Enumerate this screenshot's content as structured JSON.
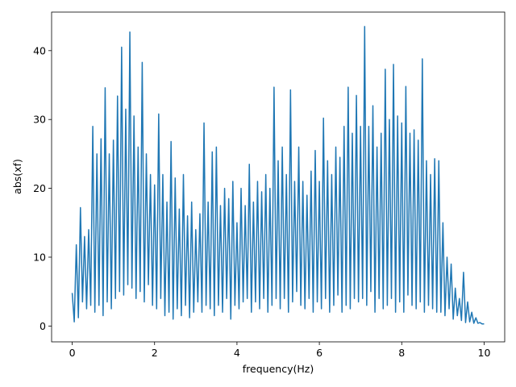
{
  "chart_data": {
    "type": "line",
    "xlabel": "frequency(Hz)",
    "ylabel": "abs(xf)",
    "xlim": [
      -0.5,
      10.5
    ],
    "ylim": [
      -2.3,
      45.6
    ],
    "xticks": [
      0,
      2,
      4,
      6,
      8,
      10
    ],
    "yticks": [
      0,
      10,
      20,
      30,
      40
    ],
    "x": [
      0,
      0.05,
      0.1,
      0.15,
      0.2,
      0.25,
      0.3,
      0.35,
      0.4,
      0.45,
      0.5,
      0.55,
      0.6,
      0.65,
      0.7,
      0.75,
      0.8,
      0.85,
      0.9,
      0.95,
      1,
      1.05,
      1.1,
      1.15,
      1.2,
      1.25,
      1.3,
      1.35,
      1.4,
      1.45,
      1.5,
      1.55,
      1.6,
      1.65,
      1.7,
      1.75,
      1.8,
      1.85,
      1.9,
      1.95,
      2,
      2.05,
      2.1,
      2.15,
      2.2,
      2.25,
      2.3,
      2.35,
      2.4,
      2.45,
      2.5,
      2.55,
      2.6,
      2.65,
      2.7,
      2.75,
      2.8,
      2.85,
      2.9,
      2.95,
      3,
      3.05,
      3.1,
      3.15,
      3.2,
      3.25,
      3.3,
      3.35,
      3.4,
      3.45,
      3.5,
      3.55,
      3.6,
      3.65,
      3.7,
      3.75,
      3.8,
      3.85,
      3.9,
      3.95,
      4,
      4.05,
      4.1,
      4.15,
      4.2,
      4.25,
      4.3,
      4.35,
      4.4,
      4.45,
      4.5,
      4.55,
      4.6,
      4.65,
      4.7,
      4.75,
      4.8,
      4.85,
      4.9,
      4.95,
      5,
      5.05,
      5.1,
      5.15,
      5.2,
      5.25,
      5.3,
      5.35,
      5.4,
      5.45,
      5.5,
      5.55,
      5.6,
      5.65,
      5.7,
      5.75,
      5.8,
      5.85,
      5.9,
      5.95,
      6,
      6.05,
      6.1,
      6.15,
      6.2,
      6.25,
      6.3,
      6.35,
      6.4,
      6.45,
      6.5,
      6.55,
      6.6,
      6.65,
      6.7,
      6.75,
      6.8,
      6.85,
      6.9,
      6.95,
      7,
      7.05,
      7.1,
      7.15,
      7.2,
      7.25,
      7.3,
      7.35,
      7.4,
      7.45,
      7.5,
      7.55,
      7.6,
      7.65,
      7.7,
      7.75,
      7.8,
      7.85,
      7.9,
      7.95,
      8,
      8.05,
      8.1,
      8.15,
      8.2,
      8.25,
      8.3,
      8.35,
      8.4,
      8.45,
      8.5,
      8.55,
      8.6,
      8.65,
      8.7,
      8.75,
      8.8,
      8.85,
      8.9,
      8.95,
      9,
      9.05,
      9.1,
      9.15,
      9.2,
      9.25,
      9.3,
      9.35,
      9.4,
      9.45,
      9.5,
      9.55,
      9.6,
      9.65,
      9.7,
      9.75,
      9.8,
      9.85,
      9.9,
      9.95,
      10
    ],
    "series": [
      {
        "color": "#1f77b4",
        "values": [
          4.8,
          0.6,
          11.8,
          1.2,
          17.2,
          3.5,
          13.0,
          2.5,
          14.0,
          3.0,
          29.0,
          2.0,
          25.0,
          3.0,
          27.2,
          1.5,
          34.6,
          3.5,
          25.0,
          2.5,
          27.0,
          4.0,
          33.4,
          5.0,
          40.5,
          4.5,
          31.5,
          6.0,
          42.7,
          5.5,
          30.5,
          4.0,
          26.0,
          5.0,
          38.3,
          3.5,
          25.0,
          6.0,
          22.0,
          3.0,
          20.5,
          2.5,
          30.8,
          4.0,
          22.0,
          1.5,
          18.0,
          2.0,
          26.8,
          1.0,
          21.5,
          2.5,
          17.0,
          1.5,
          22.0,
          3.0,
          16.0,
          1.2,
          18.0,
          2.0,
          14.0,
          3.5,
          16.3,
          2.0,
          29.5,
          3.0,
          18.0,
          2.5,
          25.3,
          1.5,
          26.0,
          3.0,
          17.5,
          2.0,
          20.0,
          4.0,
          18.5,
          1.0,
          21.0,
          3.0,
          15.0,
          2.5,
          20.0,
          3.5,
          17.5,
          4.0,
          23.5,
          2.0,
          18.0,
          3.5,
          21.0,
          2.5,
          19.5,
          4.0,
          22.0,
          2.0,
          20.0,
          3.0,
          34.7,
          4.0,
          24.0,
          2.5,
          26.0,
          4.0,
          22.0,
          2.0,
          34.3,
          3.5,
          21.0,
          5.0,
          26.0,
          3.0,
          21.0,
          2.5,
          19.0,
          4.0,
          22.5,
          2.0,
          25.5,
          3.5,
          21.0,
          2.5,
          30.2,
          4.0,
          24.0,
          2.0,
          22.0,
          3.0,
          26.0,
          4.5,
          24.5,
          2.0,
          29.0,
          3.0,
          34.7,
          2.5,
          28.0,
          4.0,
          33.5,
          3.5,
          29.0,
          4.0,
          43.5,
          3.0,
          29.0,
          5.0,
          32.0,
          2.0,
          26.0,
          4.0,
          28.0,
          2.5,
          37.3,
          3.0,
          30.0,
          4.0,
          38.0,
          2.0,
          30.5,
          3.5,
          29.5,
          2.0,
          34.8,
          4.5,
          28.0,
          3.0,
          28.5,
          2.5,
          27.0,
          3.5,
          38.8,
          2.0,
          24.0,
          3.0,
          22.0,
          2.5,
          24.3,
          2.0,
          24.0,
          2.0,
          15.0,
          1.5,
          10.0,
          2.5,
          9.0,
          1.0,
          5.5,
          1.5,
          4.0,
          0.8,
          7.8,
          0.5,
          3.5,
          0.6,
          2.0,
          0.4,
          1.2,
          0.4,
          0.5,
          0.3,
          0.3
        ]
      }
    ]
  }
}
